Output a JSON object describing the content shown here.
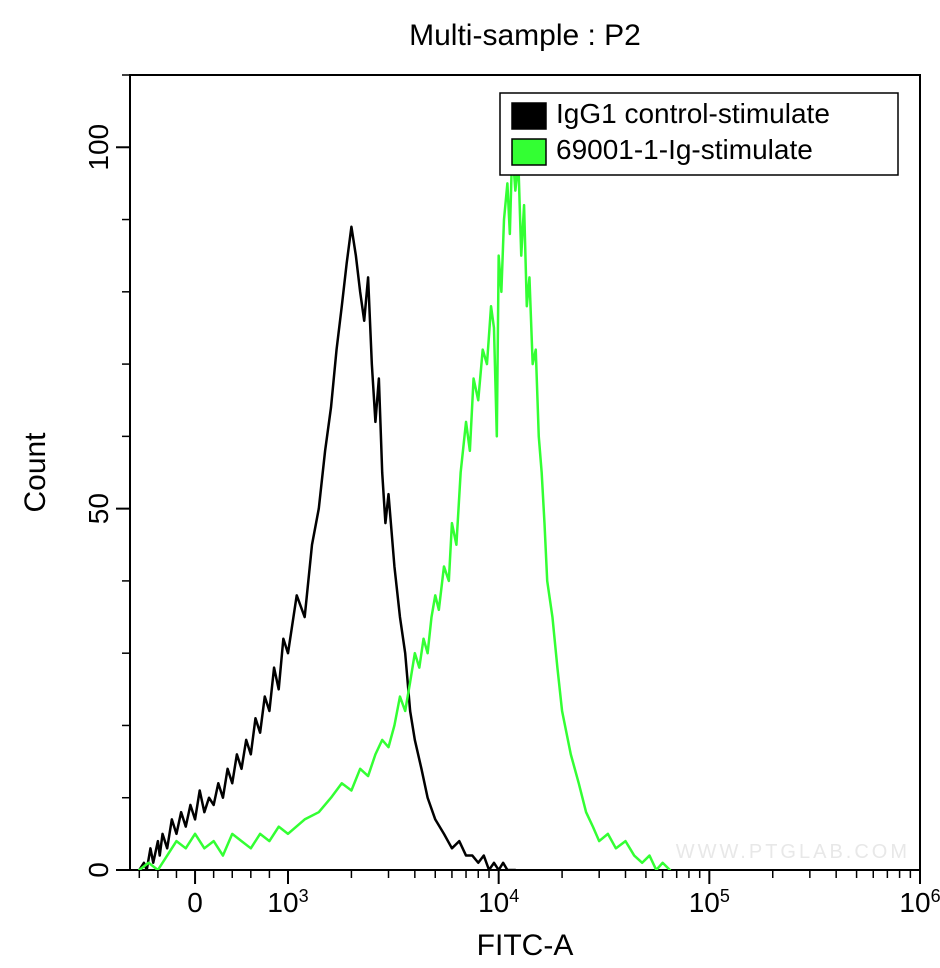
{
  "chart": {
    "type": "histogram",
    "title": "Multi-sample : P2",
    "title_fontsize": 30,
    "xlabel": "FITC-A",
    "ylabel": "Count",
    "label_fontsize": 30,
    "tick_fontsize": 28,
    "background_color": "#ffffff",
    "plot_border_color": "#000000",
    "plot_border_width": 2,
    "line_width": 2.5,
    "watermark": "WWW.PTGLAB.COM",
    "watermark_color": "#e8e8e8",
    "legend": {
      "position": "top-right",
      "border_color": "#000000",
      "border_width": 1.5,
      "swatch_border": "#000000",
      "items": [
        {
          "label": "IgG1 control-stimulate",
          "color": "#000000"
        },
        {
          "label": "69001-1-Ig-stimulate",
          "color": "#33ff33"
        }
      ]
    },
    "x_axis": {
      "type": "biexponential",
      "linear_max": 1000,
      "log_min": 3,
      "log_max": 6,
      "neg_extent": -700,
      "ticks": [
        {
          "value": 0,
          "label": "0"
        },
        {
          "value": 1000,
          "label": "10",
          "sup": "3"
        },
        {
          "value": 10000,
          "label": "10",
          "sup": "4"
        },
        {
          "value": 100000,
          "label": "10",
          "sup": "5"
        },
        {
          "value": 1000000,
          "label": "10",
          "sup": "6"
        }
      ]
    },
    "y_axis": {
      "min": 0,
      "max": 110,
      "ticks": [
        {
          "value": 0,
          "label": "0"
        },
        {
          "value": 50,
          "label": "50"
        },
        {
          "value": 100,
          "label": "100"
        }
      ]
    },
    "series": [
      {
        "name": "IgG1 control-stimulate",
        "color": "#000000",
        "data": [
          [
            -600,
            0
          ],
          [
            -550,
            1
          ],
          [
            -520,
            0
          ],
          [
            -480,
            3
          ],
          [
            -450,
            1
          ],
          [
            -400,
            4
          ],
          [
            -380,
            2
          ],
          [
            -350,
            5
          ],
          [
            -300,
            3
          ],
          [
            -250,
            7
          ],
          [
            -200,
            5
          ],
          [
            -150,
            8
          ],
          [
            -100,
            6
          ],
          [
            -50,
            9
          ],
          [
            0,
            7
          ],
          [
            50,
            11
          ],
          [
            100,
            8
          ],
          [
            150,
            10
          ],
          [
            200,
            9
          ],
          [
            250,
            12
          ],
          [
            300,
            10
          ],
          [
            350,
            14
          ],
          [
            400,
            12
          ],
          [
            450,
            16
          ],
          [
            500,
            14
          ],
          [
            550,
            18
          ],
          [
            600,
            16
          ],
          [
            650,
            21
          ],
          [
            700,
            19
          ],
          [
            750,
            24
          ],
          [
            800,
            22
          ],
          [
            850,
            28
          ],
          [
            900,
            25
          ],
          [
            950,
            32
          ],
          [
            1000,
            30
          ],
          [
            1100,
            38
          ],
          [
            1200,
            35
          ],
          [
            1300,
            45
          ],
          [
            1400,
            50
          ],
          [
            1500,
            58
          ],
          [
            1600,
            64
          ],
          [
            1700,
            72
          ],
          [
            1800,
            78
          ],
          [
            1900,
            84
          ],
          [
            2000,
            89
          ],
          [
            2100,
            85
          ],
          [
            2200,
            80
          ],
          [
            2300,
            76
          ],
          [
            2400,
            82
          ],
          [
            2500,
            70
          ],
          [
            2600,
            62
          ],
          [
            2700,
            68
          ],
          [
            2800,
            55
          ],
          [
            2900,
            48
          ],
          [
            3000,
            52
          ],
          [
            3200,
            42
          ],
          [
            3400,
            35
          ],
          [
            3600,
            30
          ],
          [
            3800,
            22
          ],
          [
            4000,
            18
          ],
          [
            4300,
            14
          ],
          [
            4600,
            10
          ],
          [
            5000,
            7
          ],
          [
            5500,
            5
          ],
          [
            6000,
            3
          ],
          [
            6500,
            4
          ],
          [
            7000,
            2
          ],
          [
            7500,
            2
          ],
          [
            8000,
            1
          ],
          [
            8500,
            2
          ],
          [
            9000,
            0
          ],
          [
            9500,
            1
          ],
          [
            10000,
            0
          ],
          [
            10500,
            1
          ],
          [
            11000,
            0
          ],
          [
            12000,
            0
          ]
        ]
      },
      {
        "name": "69001-1-Ig-stimulate",
        "color": "#33ff33",
        "data": [
          [
            -600,
            0
          ],
          [
            -500,
            1
          ],
          [
            -400,
            0
          ],
          [
            -300,
            2
          ],
          [
            -200,
            4
          ],
          [
            -100,
            3
          ],
          [
            0,
            5
          ],
          [
            100,
            3
          ],
          [
            200,
            4
          ],
          [
            300,
            2
          ],
          [
            400,
            5
          ],
          [
            500,
            4
          ],
          [
            600,
            3
          ],
          [
            700,
            5
          ],
          [
            800,
            4
          ],
          [
            900,
            6
          ],
          [
            1000,
            5
          ],
          [
            1200,
            7
          ],
          [
            1400,
            8
          ],
          [
            1600,
            10
          ],
          [
            1800,
            12
          ],
          [
            2000,
            11
          ],
          [
            2200,
            14
          ],
          [
            2400,
            13
          ],
          [
            2600,
            16
          ],
          [
            2800,
            18
          ],
          [
            3000,
            17
          ],
          [
            3200,
            20
          ],
          [
            3400,
            24
          ],
          [
            3600,
            22
          ],
          [
            3800,
            26
          ],
          [
            4000,
            30
          ],
          [
            4200,
            28
          ],
          [
            4400,
            32
          ],
          [
            4600,
            30
          ],
          [
            4800,
            35
          ],
          [
            5000,
            38
          ],
          [
            5200,
            36
          ],
          [
            5500,
            42
          ],
          [
            5800,
            40
          ],
          [
            6000,
            48
          ],
          [
            6300,
            45
          ],
          [
            6600,
            55
          ],
          [
            7000,
            62
          ],
          [
            7300,
            58
          ],
          [
            7600,
            68
          ],
          [
            8000,
            65
          ],
          [
            8400,
            72
          ],
          [
            8800,
            70
          ],
          [
            9200,
            78
          ],
          [
            9500,
            75
          ],
          [
            9800,
            60
          ],
          [
            10000,
            85
          ],
          [
            10300,
            80
          ],
          [
            10600,
            90
          ],
          [
            11000,
            95
          ],
          [
            11300,
            88
          ],
          [
            11600,
            100
          ],
          [
            12000,
            94
          ],
          [
            12400,
            98
          ],
          [
            12800,
            85
          ],
          [
            13200,
            92
          ],
          [
            13600,
            78
          ],
          [
            14000,
            82
          ],
          [
            14500,
            70
          ],
          [
            15000,
            72
          ],
          [
            15500,
            60
          ],
          [
            16000,
            55
          ],
          [
            16500,
            48
          ],
          [
            17000,
            40
          ],
          [
            18000,
            35
          ],
          [
            19000,
            28
          ],
          [
            20000,
            22
          ],
          [
            22000,
            16
          ],
          [
            24000,
            12
          ],
          [
            26000,
            8
          ],
          [
            28000,
            6
          ],
          [
            30000,
            4
          ],
          [
            33000,
            5
          ],
          [
            36000,
            3
          ],
          [
            40000,
            4
          ],
          [
            44000,
            2
          ],
          [
            48000,
            1
          ],
          [
            52000,
            2
          ],
          [
            56000,
            0
          ],
          [
            60000,
            1
          ],
          [
            65000,
            0
          ]
        ]
      }
    ]
  }
}
